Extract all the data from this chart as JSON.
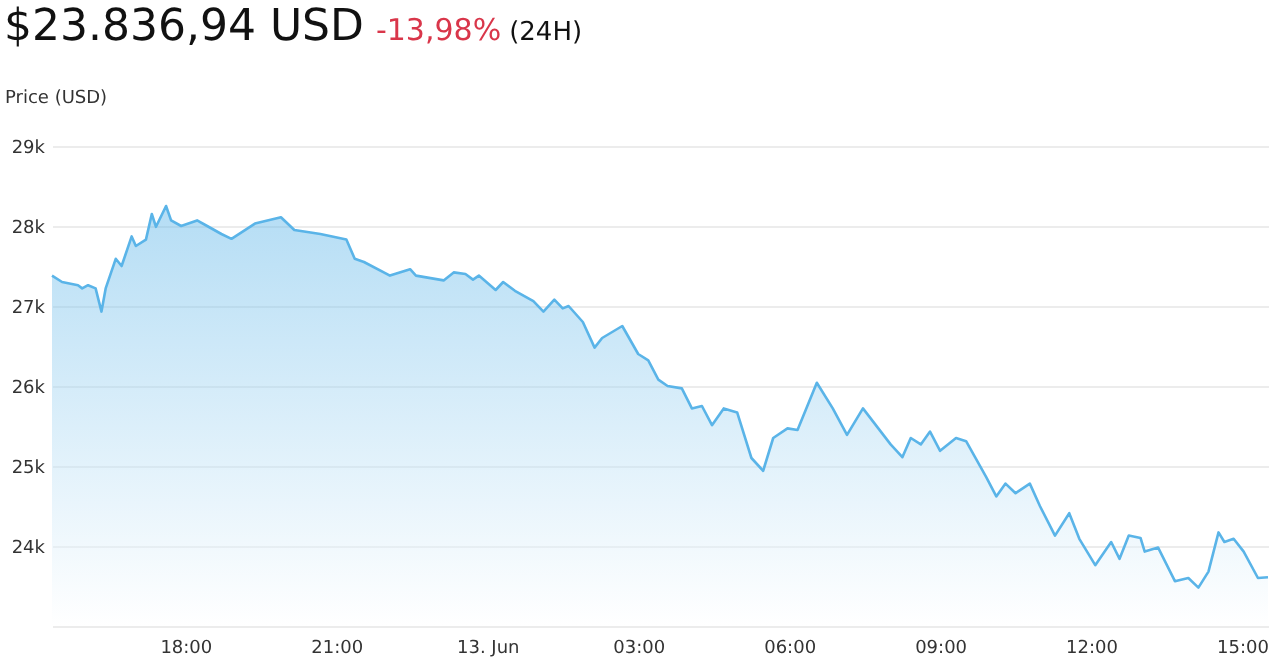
{
  "chart_data": {
    "type": "area",
    "title": "$23.836,94 USD",
    "annotations": [
      "-13,98%",
      "(24H)"
    ],
    "ylabel": "Price (USD)",
    "x": [
      "--06-12T15:21",
      "--06-12T15:33",
      "--06-12T15:52",
      "--06-12T15:57",
      "--06-12T16:04",
      "--06-12T16:13",
      "--06-12T16:20",
      "--06-12T16:25",
      "--06-12T16:37",
      "--06-12T16:44",
      "--06-12T16:56",
      "--06-12T17:01",
      "--06-12T17:13",
      "--06-12T17:20",
      "--06-12T17:25",
      "--06-12T17:37",
      "--06-12T17:43",
      "--06-12T17:55",
      "--06-12T18:14",
      "--06-12T18:26",
      "--06-12T18:43",
      "--06-12T18:55",
      "--06-12T19:23",
      "--06-12T19:54",
      "--06-12T20:10",
      "--06-12T20:41",
      "--06-12T21:12",
      "--06-12T21:22",
      "--06-12T21:33",
      "--06-12T22:04",
      "--06-12T22:28",
      "--06-12T22:35",
      "--06-12T23:08",
      "--06-12T23:20",
      "--06-12T23:34",
      "--06-12T23:43",
      "--06-12T23:50",
      "--06-13T00:10",
      "--06-13T00:19",
      "--06-13T00:33",
      "--06-13T00:55",
      "--06-13T01:07",
      "--06-13T01:20",
      "--06-13T01:30",
      "--06-13T01:37",
      "--06-13T01:54",
      "--06-13T02:08",
      "--06-13T02:17",
      "--06-13T02:41",
      "--06-13T03:00",
      "--06-13T03:12",
      "--06-13T03:24",
      "--06-13T03:35",
      "--06-13T03:52",
      "--06-13T04:04",
      "--06-13T04:16",
      "--06-13T04:28",
      "--06-13T04:42",
      "--06-13T04:58",
      "--06-13T05:15",
      "--06-13T05:29",
      "--06-13T05:41",
      "--06-13T05:58",
      "--06-13T06:10",
      "--06-13T06:33",
      "--06-13T06:52",
      "--06-13T07:09",
      "--06-13T07:28",
      "--06-13T08:01",
      "--06-13T08:15",
      "--06-13T08:25",
      "--06-13T08:37",
      "--06-13T08:48",
      "--06-13T09:00",
      "--06-13T09:19",
      "--06-13T09:31",
      "--06-13T09:55",
      "--06-13T10:07",
      "--06-13T10:18",
      "--06-13T10:30",
      "--06-13T10:47",
      "--06-13T10:59",
      "--06-13T11:17",
      "--06-13T11:34",
      "--06-13T11:46",
      "--06-13T12:05",
      "--06-13T12:24",
      "--06-13T12:34",
      "--06-13T12:45",
      "--06-13T12:59",
      "--06-13T13:04",
      "--06-13T13:20",
      "--06-13T13:40",
      "--06-13T13:56",
      "--06-13T14:08",
      "--06-13T14:20",
      "--06-13T14:32",
      "--06-13T14:39",
      "--06-13T14:50",
      "--06-13T15:02",
      "--06-13T15:19",
      "--06-13T15:31"
    ],
    "series": [
      {
        "color": "#5ab4e8",
        "values": [
          27380,
          27300,
          27260,
          27220,
          27260,
          27220,
          26930,
          27220,
          27590,
          27500,
          27870,
          27750,
          27830,
          28150,
          27990,
          28250,
          28070,
          28000,
          28070,
          28000,
          27900,
          27840,
          28030,
          28110,
          27950,
          27900,
          27830,
          27590,
          27550,
          27380,
          27460,
          27380,
          27320,
          27420,
          27400,
          27330,
          27380,
          27200,
          27300,
          27190,
          27060,
          26930,
          27080,
          26970,
          27000,
          26800,
          26480,
          26600,
          26750,
          26400,
          26320,
          26080,
          26000,
          25970,
          25720,
          25750,
          25510,
          25720,
          25670,
          25100,
          24940,
          25350,
          25470,
          25450,
          26040,
          25720,
          25390,
          25720,
          25270,
          25110,
          25350,
          25270,
          25430,
          25190,
          25350,
          25310,
          24860,
          24620,
          24780,
          24660,
          24780,
          24500,
          24130,
          24410,
          24090,
          23760,
          24050,
          23840,
          24130,
          24100,
          23930,
          23980,
          23560,
          23600,
          23480,
          23680,
          24170,
          24050,
          24090,
          23930,
          23600,
          23610
        ]
      }
    ],
    "xlim": [
      "--06-12T15:21",
      "--06-13T15:31"
    ],
    "xticks": [
      {
        "value": "--06-12T18:00",
        "label": "18:00"
      },
      {
        "value": "--06-12T21:00",
        "label": "21:00"
      },
      {
        "value": "--06-13T00:00",
        "label": "13. Jun"
      },
      {
        "value": "--06-13T03:00",
        "label": "03:00"
      },
      {
        "value": "--06-13T06:00",
        "label": "06:00"
      },
      {
        "value": "--06-13T09:00",
        "label": "09:00"
      },
      {
        "value": "--06-13T12:00",
        "label": "12:00"
      },
      {
        "value": "--06-13T15:00",
        "label": "15:00"
      }
    ],
    "ylim": [
      23000,
      29000
    ],
    "yticks": [
      {
        "value": 23000,
        "label": null
      },
      {
        "value": 24000,
        "label": "24k"
      },
      {
        "value": 25000,
        "label": "25k"
      },
      {
        "value": 26000,
        "label": "26k"
      },
      {
        "value": 27000,
        "label": "27k"
      },
      {
        "value": 28000,
        "label": "28k"
      },
      {
        "value": 29000,
        "label": "29k"
      }
    ],
    "grid": "y"
  }
}
